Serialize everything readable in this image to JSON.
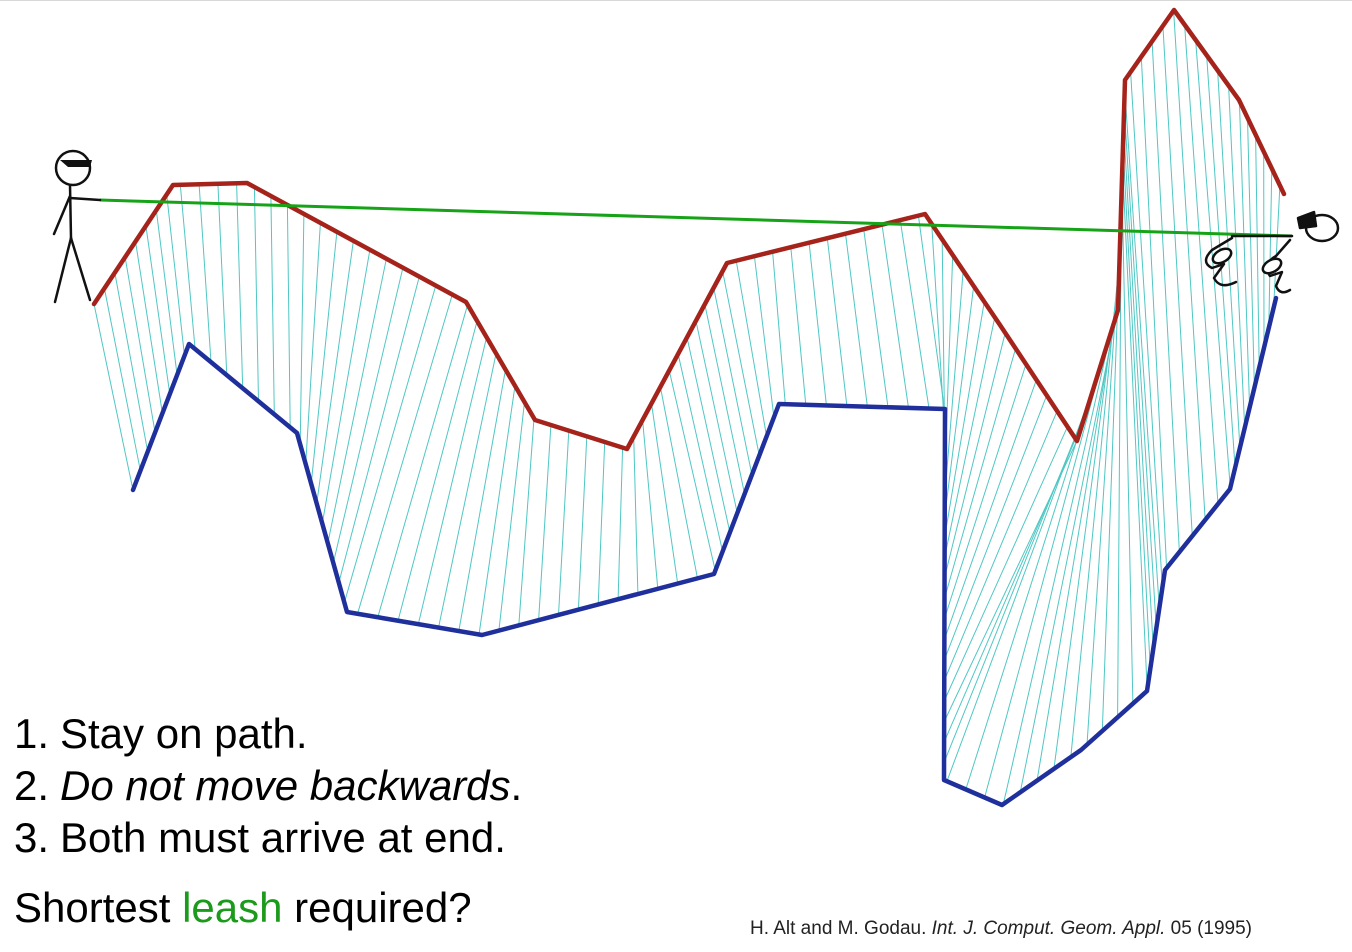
{
  "rules": [
    {
      "num": "1.",
      "text": "Stay on path.",
      "suffix": ""
    },
    {
      "num": "2.",
      "text": "Do not move backwards",
      "suffix": "."
    },
    {
      "num": "3.",
      "text": "Both must arrive at end.",
      "suffix": ""
    }
  ],
  "question": {
    "before": "Shortest ",
    "highlight": "leash",
    "after": " required?"
  },
  "citation": {
    "authors": "H. Alt and M. Godau. ",
    "journal": "Int. J. Comput. Geom. Appl.",
    "details": " 05 (1995)"
  },
  "colors": {
    "person_path": "#a5231a",
    "dog_path": "#1f2f9c",
    "leash": "#17a317",
    "matching": "#4fc7c4",
    "leash_word": "#1b9a1b"
  },
  "icons": {
    "person": "stick-figure-person-icon",
    "dog": "dog-icon"
  }
}
